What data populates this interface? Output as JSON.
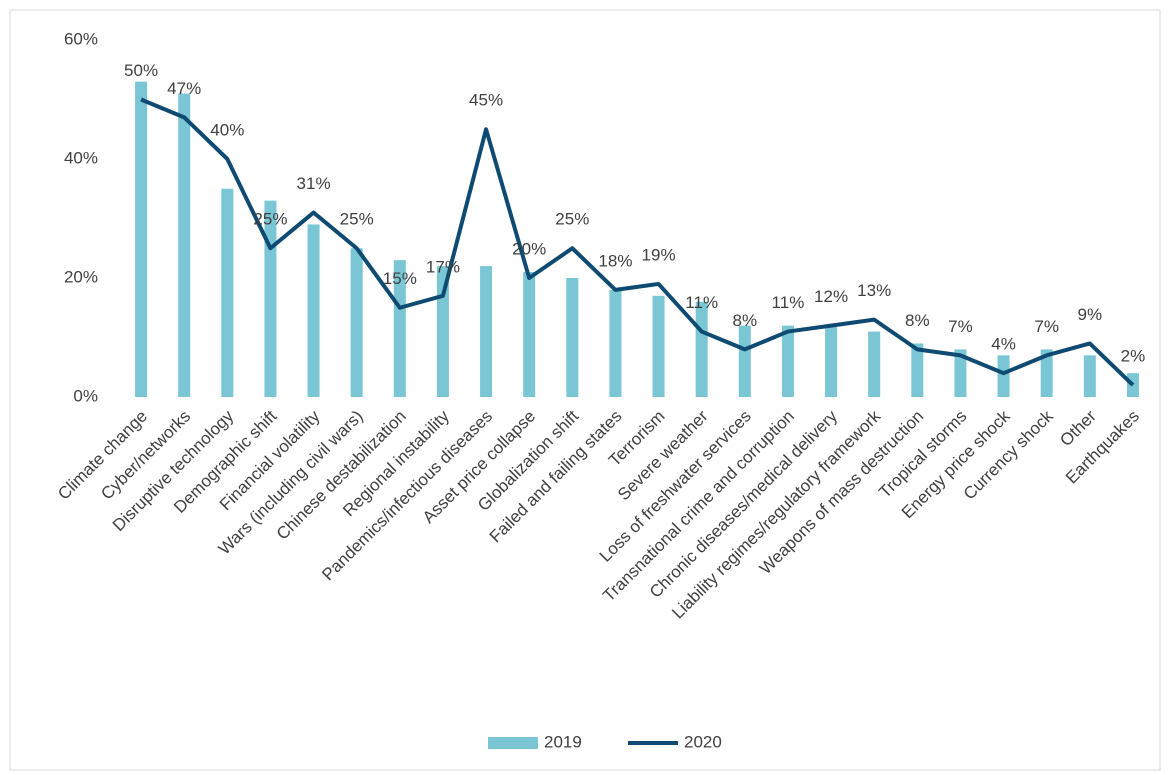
{
  "chart_data": {
    "type": "bar_line",
    "categories": [
      "Climate change",
      "Cyber/networks",
      "Disruptive technology",
      "Demographic shift",
      "Financial volatility",
      "Wars (including civil wars)",
      "Chinese destabilization",
      "Regional instability",
      "Pandemics/infectious diseases",
      "Asset price collapse",
      "Globalization shift",
      "Failed and failing states",
      "Terrorism",
      "Severe weather",
      "Loss of freshwater services",
      "Transnational crime and corruption",
      "Chronic diseases/medical delivery",
      "Liability regimes/regulatory framework",
      "Weapons of mass destruction",
      "Tropical storms",
      "Energy price shock",
      "Currency shock",
      "Other",
      "Earthquakes"
    ],
    "series": [
      {
        "name": "2019",
        "type": "bar",
        "color": "#7ac6d4",
        "values": [
          53,
          51,
          35,
          33,
          29,
          25,
          23,
          22,
          22,
          21,
          20,
          18,
          17,
          16,
          12,
          12,
          12,
          11,
          9,
          8,
          7,
          8,
          7,
          4
        ]
      },
      {
        "name": "2020",
        "type": "line",
        "color": "#0e4a72",
        "values": [
          50,
          47,
          40,
          25,
          31,
          25,
          15,
          17,
          45,
          20,
          25,
          18,
          19,
          11,
          8,
          11,
          12,
          13,
          8,
          7,
          4,
          7,
          9,
          2
        ],
        "value_labels": [
          "50%",
          "47%",
          "40%",
          "25%",
          "31%",
          "25%",
          "15%",
          "17%",
          "45%",
          "20%",
          "25%",
          "18%",
          "19%",
          "11%",
          "8%",
          "11%",
          "12%",
          "13%",
          "8%",
          "7%",
          "4%",
          "7%",
          "9%",
          "2%"
        ]
      }
    ],
    "ylim": [
      0,
      60
    ],
    "yticks": [
      {
        "value": 0,
        "label": "0%"
      },
      {
        "value": 20,
        "label": "20%"
      },
      {
        "value": 40,
        "label": "40%"
      },
      {
        "value": 60,
        "label": "60%"
      }
    ],
    "grid": false,
    "legend": "bottom"
  }
}
